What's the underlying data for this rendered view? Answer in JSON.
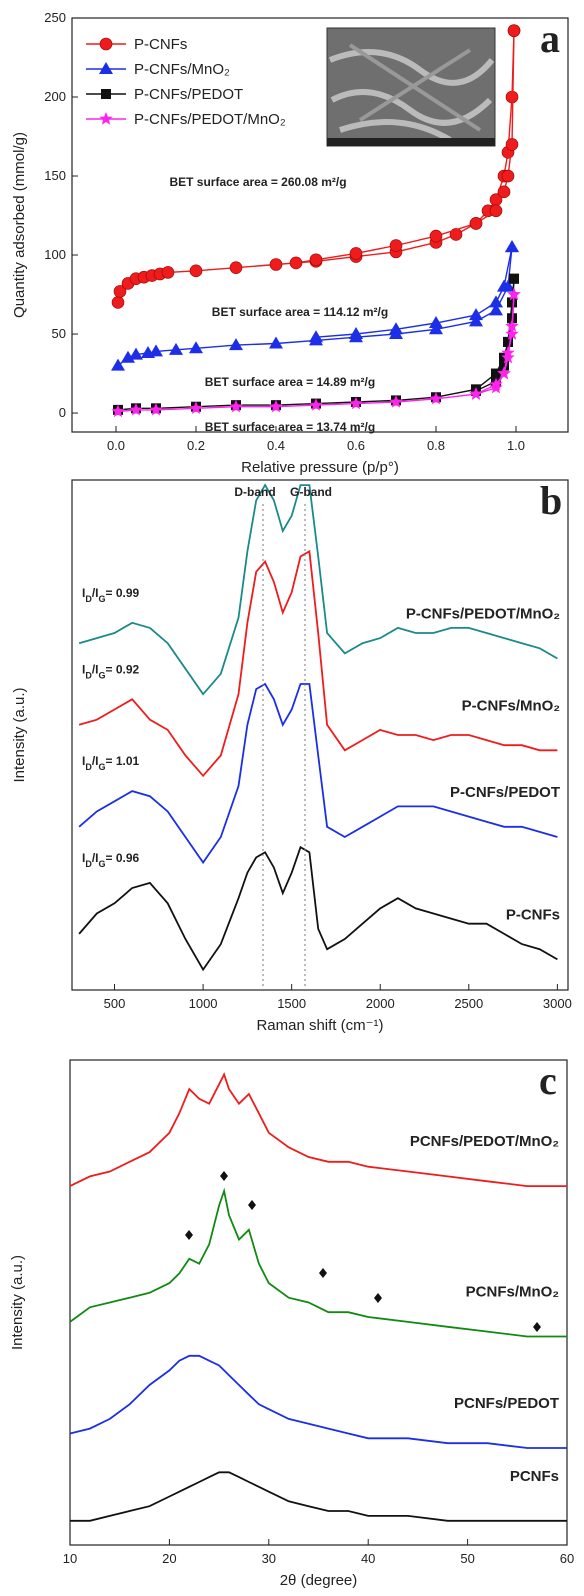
{
  "chart_data": [
    {
      "type": "line",
      "panel_label": "a",
      "xlabel": "Relative pressure (p/p°)",
      "ylabel": "Quantity adsorbed (mmol/g)",
      "xlim": [
        -0.11,
        1.13
      ],
      "ylim": [
        -12,
        250
      ],
      "xticks": [
        {
          "value": 0,
          "label": "0.0"
        },
        0.2,
        0.4,
        0.6,
        0.8,
        {
          "value": 1,
          "label": "1.0"
        }
      ],
      "yticks": [
        0,
        50,
        100,
        150,
        200,
        250
      ],
      "legend": "upper left",
      "annotations": [
        "BET surface area = 260.08 m²/g",
        "BET surface area = 114.12 m²/g",
        "BET surface area = 14.89 m²/g",
        "BET surface area = 13.74 m²/g"
      ],
      "series": [
        {
          "name": "P-CNFs",
          "color": "#ee1c1c",
          "marker": "circle",
          "x": [
            0.005,
            0.01,
            0.03,
            0.05,
            0.07,
            0.09,
            0.11,
            0.13,
            0.2,
            0.3,
            0.4,
            0.5,
            0.6,
            0.7,
            0.8,
            0.85,
            0.9,
            0.93,
            0.95,
            0.97,
            0.98,
            0.99,
            0.995
          ],
          "values": [
            70,
            77,
            82,
            85,
            86,
            87,
            88,
            89,
            90,
            92,
            94,
            96,
            99,
            102,
            108,
            113,
            120,
            128,
            135,
            150,
            165,
            200,
            242
          ],
          "desorption_x": [
            0.995,
            0.99,
            0.98,
            0.97,
            0.95,
            0.9,
            0.8,
            0.7,
            0.6,
            0.5,
            0.45
          ],
          "desorption_values": [
            242,
            170,
            150,
            140,
            128,
            120,
            112,
            106,
            101,
            97,
            95
          ]
        },
        {
          "name": "P-CNFs/MnO₂",
          "color": "#1c2ee6",
          "marker": "triangle",
          "x": [
            0.005,
            0.03,
            0.05,
            0.08,
            0.1,
            0.15,
            0.2,
            0.3,
            0.4,
            0.5,
            0.6,
            0.7,
            0.8,
            0.9,
            0.95,
            0.98,
            0.99
          ],
          "values": [
            30,
            35,
            37,
            38,
            39,
            40,
            41,
            43,
            44,
            46,
            48,
            50,
            53,
            58,
            65,
            80,
            105
          ],
          "desorption_x": [
            0.99,
            0.97,
            0.95,
            0.9,
            0.8,
            0.7,
            0.6,
            0.5
          ],
          "desorption_values": [
            105,
            80,
            70,
            62,
            57,
            53,
            50,
            48
          ]
        },
        {
          "name": "P-CNFs/PEDOT",
          "color": "#111111",
          "marker": "square",
          "x": [
            0.005,
            0.05,
            0.1,
            0.2,
            0.3,
            0.4,
            0.5,
            0.6,
            0.7,
            0.8,
            0.9,
            0.95,
            0.97,
            0.98,
            0.99,
            0.995
          ],
          "values": [
            2,
            3,
            3,
            4,
            5,
            5,
            6,
            7,
            8,
            10,
            15,
            25,
            35,
            45,
            70,
            85
          ],
          "desorption_x": [
            0.995,
            0.99,
            0.98,
            0.97,
            0.95,
            0.9
          ],
          "desorption_values": [
            85,
            60,
            45,
            30,
            20,
            14
          ]
        },
        {
          "name": "P-CNFs/PEDOT/MnO₂",
          "color": "#ff22ee",
          "marker": "star",
          "x": [
            0.005,
            0.05,
            0.1,
            0.2,
            0.3,
            0.4,
            0.5,
            0.6,
            0.7,
            0.8,
            0.9,
            0.95,
            0.97,
            0.98,
            0.99,
            0.995
          ],
          "values": [
            1,
            2,
            2,
            3,
            4,
            4,
            5,
            6,
            7,
            9,
            12,
            18,
            25,
            35,
            55,
            75
          ],
          "desorption_x": [
            0.995,
            0.99,
            0.98,
            0.97,
            0.95,
            0.9
          ],
          "desorption_values": [
            75,
            50,
            38,
            25,
            16,
            12
          ]
        }
      ]
    },
    {
      "type": "spectrum",
      "panel_label": "b",
      "xlabel": "Raman shift (cm⁻¹)",
      "ylabel": "Intensity (a.u.)",
      "xlim": [
        260,
        3060
      ],
      "ylim": [
        0,
        10
      ],
      "xticks": [
        500,
        1000,
        1500,
        2000,
        2500,
        3000
      ],
      "annotations": [
        "D-band",
        "G-band"
      ],
      "x": [
        300,
        400,
        500,
        600,
        700,
        800,
        900,
        1000,
        1100,
        1200,
        1250,
        1300,
        1350,
        1400,
        1450,
        1500,
        1550,
        1600,
        1650,
        1700,
        1800,
        1900,
        2000,
        2100,
        2200,
        2300,
        2400,
        2500,
        2600,
        2700,
        2800,
        2900,
        3000
      ],
      "series": [
        {
          "name": "P-CNFs/PEDOT/MnO₂",
          "color": "#1a8a8a",
          "ratio": [
            "I",
            "D",
            "/I",
            "G",
            "= 0.99"
          ],
          "values": [
            6.8,
            6.9,
            7.0,
            7.2,
            7.1,
            6.8,
            6.3,
            5.8,
            6.2,
            7.3,
            8.6,
            9.6,
            9.9,
            9.6,
            9.0,
            9.3,
            9.9,
            9.9,
            8.5,
            7.0,
            6.6,
            6.8,
            6.9,
            7.1,
            7.0,
            7.0,
            7.1,
            7.1,
            7.0,
            6.9,
            6.8,
            6.7,
            6.5
          ]
        },
        {
          "name": "P-CNFs/MnO₂",
          "color": "#ee1c1c",
          "ratio": [
            "I",
            "D",
            "/I",
            "G",
            "= 0.92"
          ],
          "values": [
            5.2,
            5.3,
            5.5,
            5.7,
            5.3,
            5.1,
            4.6,
            4.2,
            4.6,
            5.8,
            7.2,
            8.2,
            8.4,
            8.0,
            7.4,
            7.8,
            8.5,
            8.6,
            7.0,
            5.2,
            4.7,
            4.9,
            5.1,
            5.0,
            5.0,
            4.9,
            5.0,
            5.0,
            4.9,
            4.8,
            4.8,
            4.7,
            4.7
          ]
        },
        {
          "name": "P-CNFs/PEDOT",
          "color": "#1c2ee6",
          "ratio": [
            "I",
            "D",
            "/I",
            "G",
            "= 1.01"
          ],
          "values": [
            3.2,
            3.5,
            3.7,
            3.9,
            3.8,
            3.5,
            3.0,
            2.5,
            3.0,
            4.0,
            5.2,
            5.9,
            6.0,
            5.7,
            5.2,
            5.5,
            6.0,
            6.0,
            4.6,
            3.2,
            3.0,
            3.2,
            3.4,
            3.6,
            3.6,
            3.6,
            3.5,
            3.4,
            3.3,
            3.2,
            3.2,
            3.1,
            3.0
          ]
        },
        {
          "name": "P-CNFs",
          "color": "#111111",
          "ratio": [
            "I",
            "D",
            "/I",
            "G",
            "= 0.96"
          ],
          "values": [
            1.1,
            1.5,
            1.7,
            2.0,
            2.1,
            1.7,
            1.0,
            0.4,
            0.9,
            1.8,
            2.3,
            2.6,
            2.7,
            2.4,
            1.9,
            2.3,
            2.8,
            2.7,
            1.2,
            0.8,
            1.0,
            1.3,
            1.6,
            1.8,
            1.6,
            1.5,
            1.4,
            1.3,
            1.3,
            1.1,
            0.9,
            0.8,
            0.6
          ]
        }
      ]
    },
    {
      "type": "spectrum",
      "panel_label": "c",
      "xlabel": "2θ (degree)",
      "ylabel": "Intensity (a.u.)",
      "xlim": [
        10,
        60
      ],
      "ylim": [
        0,
        10
      ],
      "xticks": [
        10,
        20,
        30,
        40,
        50,
        60
      ],
      "x": [
        10,
        12,
        14,
        16,
        18,
        20,
        21,
        22,
        23,
        24,
        25,
        25.5,
        26,
        27,
        28,
        29,
        30,
        32,
        34,
        36,
        38,
        40,
        44,
        48,
        52,
        56,
        60
      ],
      "series": [
        {
          "name": "PCNFs/PEDOT/MnO₂",
          "color": "#ee1c1c",
          "values": [
            7.4,
            7.6,
            7.7,
            7.9,
            8.1,
            8.5,
            8.9,
            9.4,
            9.2,
            9.1,
            9.5,
            9.7,
            9.4,
            9.1,
            9.3,
            8.9,
            8.5,
            8.2,
            8.0,
            7.9,
            7.9,
            7.8,
            7.7,
            7.6,
            7.5,
            7.4,
            7.4
          ]
        },
        {
          "name": "PCNFs/MnO₂",
          "color": "#118a11",
          "values": [
            4.6,
            4.9,
            5.0,
            5.1,
            5.2,
            5.4,
            5.6,
            5.9,
            5.8,
            6.2,
            7.0,
            7.3,
            6.8,
            6.3,
            6.5,
            5.8,
            5.4,
            5.1,
            5.0,
            4.8,
            4.8,
            4.7,
            4.6,
            4.5,
            4.4,
            4.3,
            4.3
          ]
        },
        {
          "name": "PCNFs/PEDOT",
          "color": "#1c2ee6",
          "values": [
            2.3,
            2.4,
            2.6,
            2.9,
            3.3,
            3.6,
            3.8,
            3.9,
            3.9,
            3.8,
            3.7,
            3.6,
            3.5,
            3.3,
            3.1,
            2.9,
            2.8,
            2.6,
            2.5,
            2.4,
            2.3,
            2.2,
            2.2,
            2.1,
            2.1,
            2.0,
            2.0
          ]
        },
        {
          "name": "PCNFs",
          "color": "#111111",
          "values": [
            0.5,
            0.5,
            0.6,
            0.7,
            0.8,
            1.0,
            1.1,
            1.2,
            1.3,
            1.4,
            1.5,
            1.5,
            1.5,
            1.4,
            1.3,
            1.2,
            1.1,
            0.9,
            0.8,
            0.7,
            0.7,
            0.6,
            0.6,
            0.5,
            0.5,
            0.5,
            0.5
          ]
        }
      ]
    }
  ]
}
